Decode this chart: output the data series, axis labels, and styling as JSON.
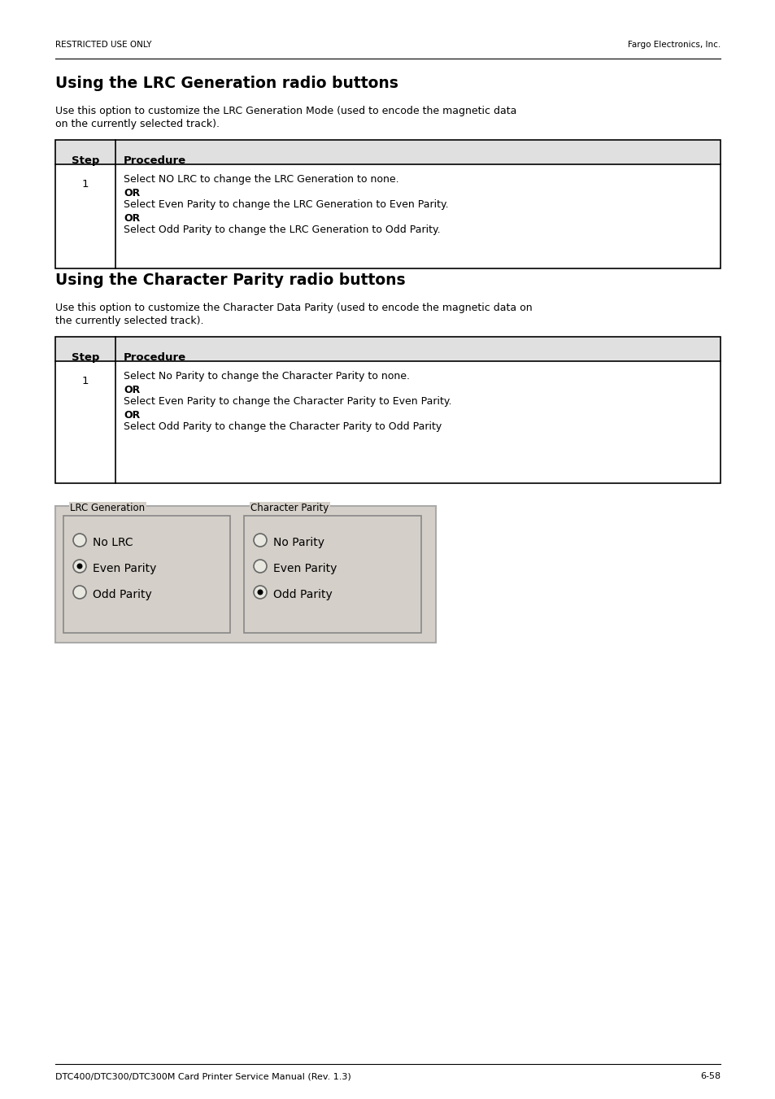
{
  "page_bg": "#ffffff",
  "header_left": "RESTRICTED USE ONLY",
  "header_right": "Fargo Electronics, Inc.",
  "footer_left": "DTC400/DTC300/DTC300M Card Printer Service Manual (Rev. 1.3)",
  "footer_right": "6-58",
  "section1_title": "Using the LRC Generation radio buttons",
  "section1_intro_line1": "Use this option to customize the LRC Generation Mode (used to encode the magnetic data",
  "section1_intro_line2": "on the currently selected track).",
  "table1_header_col1": "Step",
  "table1_header_col2": "Procedure",
  "table1_row1_col1": "1",
  "table1_row1_lines": [
    {
      "text": "Select NO LRC to change the LRC Generation to none.",
      "bold": false
    },
    {
      "text": "OR",
      "bold": true
    },
    {
      "text": "Select Even Parity to change the LRC Generation to Even Parity.",
      "bold": false
    },
    {
      "text": "OR",
      "bold": true
    },
    {
      "text": "Select Odd Parity to change the LRC Generation to Odd Parity.",
      "bold": false
    }
  ],
  "section2_title": "Using the Character Parity radio buttons",
  "section2_intro_line1": "Use this option to customize the Character Data Parity (used to encode the magnetic data on",
  "section2_intro_line2": "the currently selected track).",
  "table2_header_col1": "Step",
  "table2_header_col2": "Procedure",
  "table2_row1_col1": "1",
  "table2_row1_lines": [
    {
      "text": "Select No Parity to change the Character Parity to none.",
      "bold": false
    },
    {
      "text": "OR",
      "bold": true
    },
    {
      "text": "Select Even Parity to change the Character Parity to Even Parity.",
      "bold": false
    },
    {
      "text": "OR",
      "bold": true
    },
    {
      "text": "Select Odd Parity to change the Character Parity to Odd Parity",
      "bold": false
    }
  ],
  "ui_bg": "#d4cfc8",
  "ui_border": "#888888",
  "lrc_title": "LRC Generation",
  "lrc_options": [
    "No LRC",
    "Even Parity",
    "Odd Parity"
  ],
  "lrc_selected": 1,
  "char_title": "Character Parity",
  "char_options": [
    "No Parity",
    "Even Parity",
    "Odd Parity"
  ],
  "char_selected": 2
}
